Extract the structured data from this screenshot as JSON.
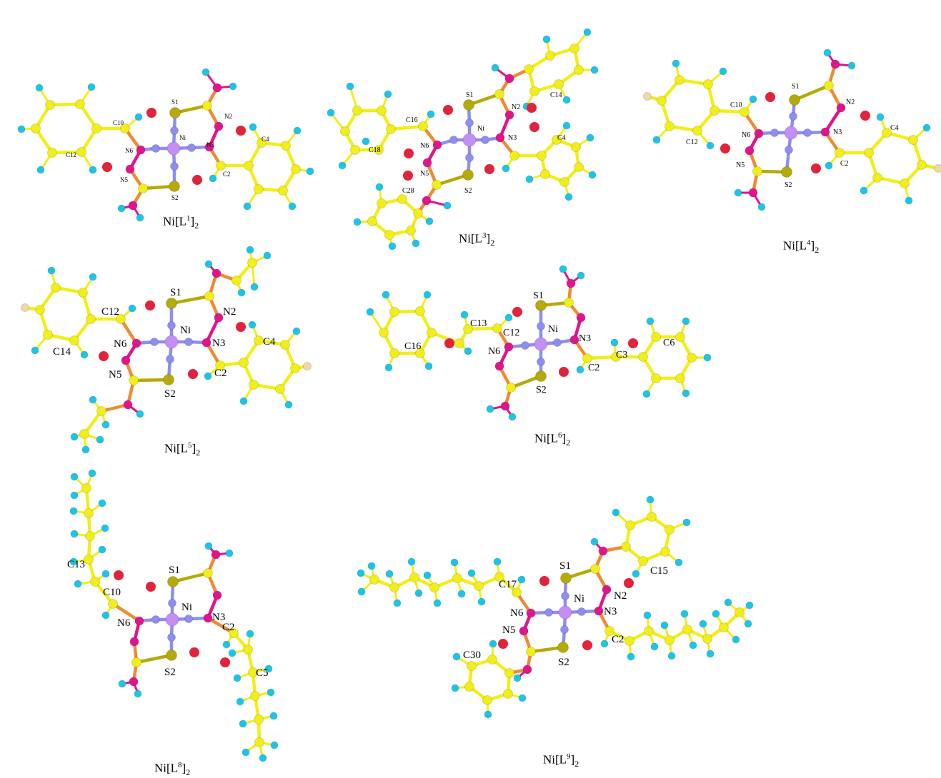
{
  "colors": {
    "carbon": "#f2ee18",
    "carbon_stroke": "#b0a800",
    "hydrogen": "#18c6ea",
    "hydrogen_stroke": "#0f8fae",
    "nitrogen": "#e0158c",
    "nickel": "#c58ef5",
    "sulfur": "#b5aa08",
    "nitrogen_bridge": "#8e8ef0",
    "cn_bond": "#f08a30",
    "halogen": "#f0d9a8",
    "marker": "#e0243c"
  },
  "molecules": [
    {
      "id": "L1",
      "caption": {
        "base": "Ni[L",
        "sup": "1",
        "mid": "]",
        "sub": "2"
      },
      "labels": [
        "S1",
        "N2",
        "C10",
        "Ni",
        "C4",
        "N6",
        "N3",
        "C12",
        "C2",
        "N5",
        "S2"
      ]
    },
    {
      "id": "L3",
      "caption": {
        "base": "Ni[L",
        "sup": "3",
        "mid": "]",
        "sub": "2"
      },
      "labels": [
        "C14",
        "S1",
        "N2",
        "C16",
        "Ni",
        "C4",
        "N6",
        "N3",
        "C18",
        "N5",
        "S2",
        "C28"
      ]
    },
    {
      "id": "L4",
      "caption": {
        "base": "Ni[L",
        "sup": "4",
        "mid": "]",
        "sub": "2"
      },
      "labels": [
        "S1",
        "N2",
        "C10",
        "C4",
        "N6",
        "N3",
        "C12",
        "N5",
        "C2",
        "S2"
      ]
    },
    {
      "id": "L5",
      "caption": {
        "base": "Ni[L",
        "sup": "5",
        "mid": "]",
        "sub": "2"
      },
      "labels": [
        "S1",
        "C12",
        "N2",
        "Ni",
        "C4",
        "C14",
        "N6",
        "N3",
        "N5",
        "C2",
        "S2"
      ]
    },
    {
      "id": "L6",
      "caption": {
        "base": "Ni[L",
        "sup": "6",
        "mid": "]",
        "sub": "2"
      },
      "labels": [
        "S1",
        "C13",
        "C12",
        "Ni",
        "N3",
        "C6",
        "C16",
        "N6",
        "C3",
        "C2",
        "S2"
      ]
    },
    {
      "id": "L8",
      "caption": {
        "base": "Ni[L",
        "sup": "8",
        "mid": "]",
        "sub": "2"
      },
      "labels": [
        "C13",
        "S1",
        "C10",
        "Ni",
        "N3",
        "N6",
        "C2",
        "S2",
        "C5"
      ]
    },
    {
      "id": "L9",
      "caption": {
        "base": "Ni[L",
        "sup": "9",
        "mid": "]",
        "sub": "2"
      },
      "labels": [
        "S1",
        "C15",
        "C17",
        "Ni",
        "N2",
        "N6",
        "N3",
        "N5",
        "C2",
        "C30",
        "S2"
      ]
    }
  ]
}
